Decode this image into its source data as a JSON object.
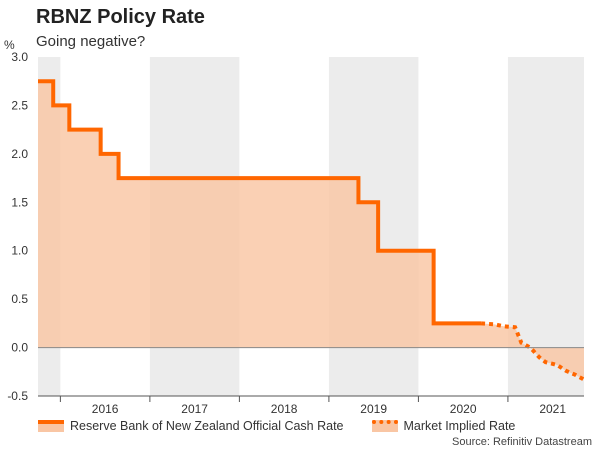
{
  "header": {
    "title": "RBNZ Policy Rate",
    "subtitle": "Going negative?",
    "unit": "%"
  },
  "legend": {
    "series1": "Reserve Bank of New Zealand Official Cash Rate",
    "series2": "Market Implied Rate"
  },
  "source": "Source: Refinitiv Datastream",
  "colors": {
    "line": "#ff6600",
    "fill": "#f9c6a4",
    "shade": "#ececec"
  },
  "chart_data": {
    "type": "area",
    "title": "RBNZ Policy Rate",
    "subtitle": "Going negative?",
    "ylabel": "%",
    "ylim": [
      -0.5,
      3.0
    ],
    "yticks": [
      "3.0",
      "2.5",
      "2.0",
      "1.5",
      "1.0",
      "0.5",
      "0.0",
      "-0.5"
    ],
    "xlim": [
      2015.25,
      2021.35
    ],
    "xtick_labels": [
      {
        "label": "2016",
        "x": 2016.0
      },
      {
        "label": "2017",
        "x": 2017.0
      },
      {
        "label": "2018",
        "x": 2018.0
      },
      {
        "label": "2019",
        "x": 2019.0
      },
      {
        "label": "2020",
        "x": 2020.0
      },
      {
        "label": "2021",
        "x": 2021.0
      }
    ],
    "shaded_years": [
      [
        2015.25,
        2015.5
      ],
      [
        2016.5,
        2017.5
      ],
      [
        2018.5,
        2019.5
      ],
      [
        2020.5,
        2021.35
      ]
    ],
    "grid": false,
    "legend_position": "bottom",
    "series": [
      {
        "name": "Reserve Bank of New Zealand Official Cash Rate",
        "style": "solid",
        "points": [
          [
            2015.25,
            2.75
          ],
          [
            2015.42,
            2.75
          ],
          [
            2015.42,
            2.5
          ],
          [
            2015.6,
            2.5
          ],
          [
            2015.6,
            2.25
          ],
          [
            2015.95,
            2.25
          ],
          [
            2015.95,
            2.0
          ],
          [
            2016.15,
            2.0
          ],
          [
            2016.15,
            1.75
          ],
          [
            2018.83,
            1.75
          ],
          [
            2018.83,
            1.5
          ],
          [
            2019.05,
            1.5
          ],
          [
            2019.05,
            1.0
          ],
          [
            2019.67,
            1.0
          ],
          [
            2019.67,
            0.25
          ],
          [
            2020.2,
            0.25
          ]
        ]
      },
      {
        "name": "Market Implied Rate",
        "style": "dotted",
        "points": [
          [
            2020.2,
            0.25
          ],
          [
            2020.35,
            0.24
          ],
          [
            2020.45,
            0.22
          ],
          [
            2020.58,
            0.21
          ],
          [
            2020.65,
            0.05
          ],
          [
            2020.75,
            0.0
          ],
          [
            2020.85,
            -0.1
          ],
          [
            2020.92,
            -0.15
          ],
          [
            2021.05,
            -0.18
          ],
          [
            2021.15,
            -0.24
          ],
          [
            2021.25,
            -0.28
          ],
          [
            2021.35,
            -0.33
          ]
        ]
      }
    ]
  }
}
